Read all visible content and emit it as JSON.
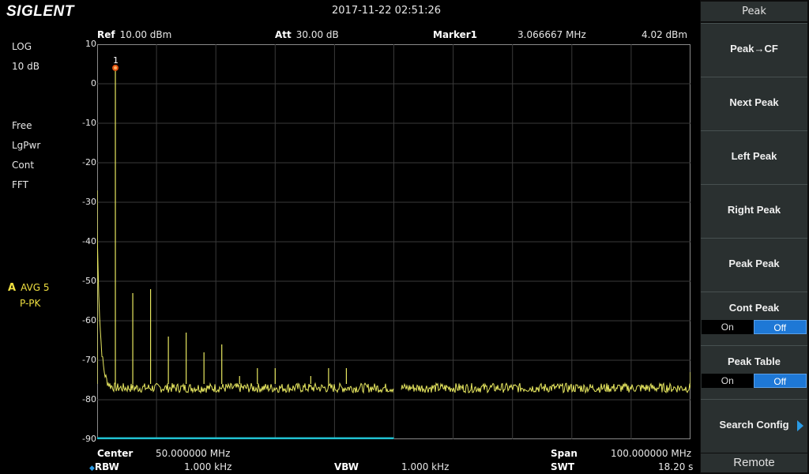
{
  "brand": "SIGLENT",
  "datetime": "2017-11-22   02:51:26",
  "left_params": [
    "LOG",
    "10 dB",
    "Free",
    "LgPwr",
    "Cont",
    "FFT"
  ],
  "trace": {
    "letter": "A",
    "mode": "AVG 5",
    "detector": "P-PK"
  },
  "header": {
    "ref_label": "Ref",
    "ref_value": "10.00 dBm",
    "att_label": "Att",
    "att_value": "30.00 dB",
    "marker_label": "Marker1",
    "marker_freq": "3.066667 MHz",
    "marker_level": "4.02 dBm"
  },
  "y_axis": {
    "ticks": [
      "10",
      "0",
      "-10",
      "-20",
      "-30",
      "-40",
      "-50",
      "-60",
      "-70",
      "-80",
      "-90"
    ]
  },
  "marker_number": "1",
  "footer": {
    "center_label": "Center",
    "center_value": "50.000000 MHz",
    "span_label": "Span",
    "span_value": "100.000000 MHz",
    "rbw_label": "RBW",
    "rbw_value": "1.000 kHz",
    "vbw_label": "VBW",
    "vbw_value": "1.000 kHz",
    "swt_label": "SWT",
    "swt_value": "18.20 s"
  },
  "softkeys": {
    "title": "Peak",
    "peak_cf": "Peak→CF",
    "next_peak": "Next Peak",
    "left_peak": "Left Peak",
    "right_peak": "Right Peak",
    "peak_peak": "Peak Peak",
    "cont_peak": "Cont Peak",
    "cont_peak_on": "On",
    "cont_peak_off": "Off",
    "peak_table": "Peak Table",
    "peak_table_on": "On",
    "peak_table_off": "Off",
    "search_config": "Search Config",
    "remote": "Remote"
  },
  "colors": {
    "trace": "#e8e860",
    "grid": "#3a3a3a",
    "selected": "#1e78d6",
    "sweep_bar": "#20c0d0"
  },
  "chart_data": {
    "type": "line",
    "xlim_mhz": [
      0,
      100
    ],
    "ylim_dbm": [
      -90,
      10
    ],
    "noise_floor_dbm": -77,
    "peaks": [
      {
        "freq_mhz": 0.0,
        "level_dbm": -27
      },
      {
        "freq_mhz": 3.066667,
        "level_dbm": 4.02
      },
      {
        "freq_mhz": 6.0,
        "level_dbm": -53
      },
      {
        "freq_mhz": 9.0,
        "level_dbm": -52
      },
      {
        "freq_mhz": 12.0,
        "level_dbm": -64
      },
      {
        "freq_mhz": 15.0,
        "level_dbm": -63
      },
      {
        "freq_mhz": 18.0,
        "level_dbm": -68
      },
      {
        "freq_mhz": 21.0,
        "level_dbm": -66
      },
      {
        "freq_mhz": 24.0,
        "level_dbm": -74
      },
      {
        "freq_mhz": 27.0,
        "level_dbm": -72
      },
      {
        "freq_mhz": 30.0,
        "level_dbm": -72
      },
      {
        "freq_mhz": 36.0,
        "level_dbm": -74
      },
      {
        "freq_mhz": 39.0,
        "level_dbm": -72
      },
      {
        "freq_mhz": 42.0,
        "level_dbm": -72
      },
      {
        "freq_mhz": 100.0,
        "level_dbm": -73
      }
    ]
  }
}
